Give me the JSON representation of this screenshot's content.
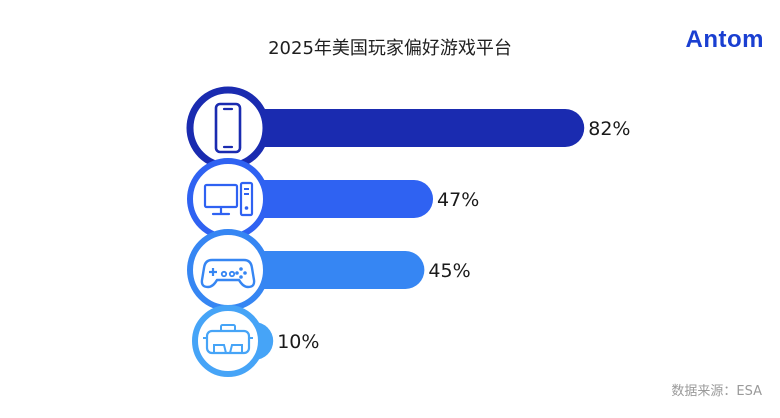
{
  "brand": {
    "logo_text": "Antom"
  },
  "source_note": "数据来源：ESA",
  "chart_data": {
    "type": "bar",
    "orientation": "horizontal",
    "title": "2025年美国玩家偏好游戏平台",
    "categories": [
      "smartphone",
      "pc",
      "console",
      "vr"
    ],
    "icons": [
      "smartphone-icon",
      "desktop-pc-icon",
      "gamepad-icon",
      "vr-headset-icon"
    ],
    "values": [
      82,
      47,
      45,
      10
    ],
    "value_labels": [
      "82%",
      "47%",
      "45%",
      "10%"
    ],
    "unit": "%",
    "xlim": [
      0,
      100
    ],
    "grid": false,
    "legend": "none",
    "colors": [
      "#1a2bb0",
      "#2f62f2",
      "#3686f3",
      "#46a4f7"
    ],
    "icon_ring_colors": [
      "#1a2bb0",
      "#2f62f2",
      "#3686f3",
      "#46a4f7"
    ]
  }
}
